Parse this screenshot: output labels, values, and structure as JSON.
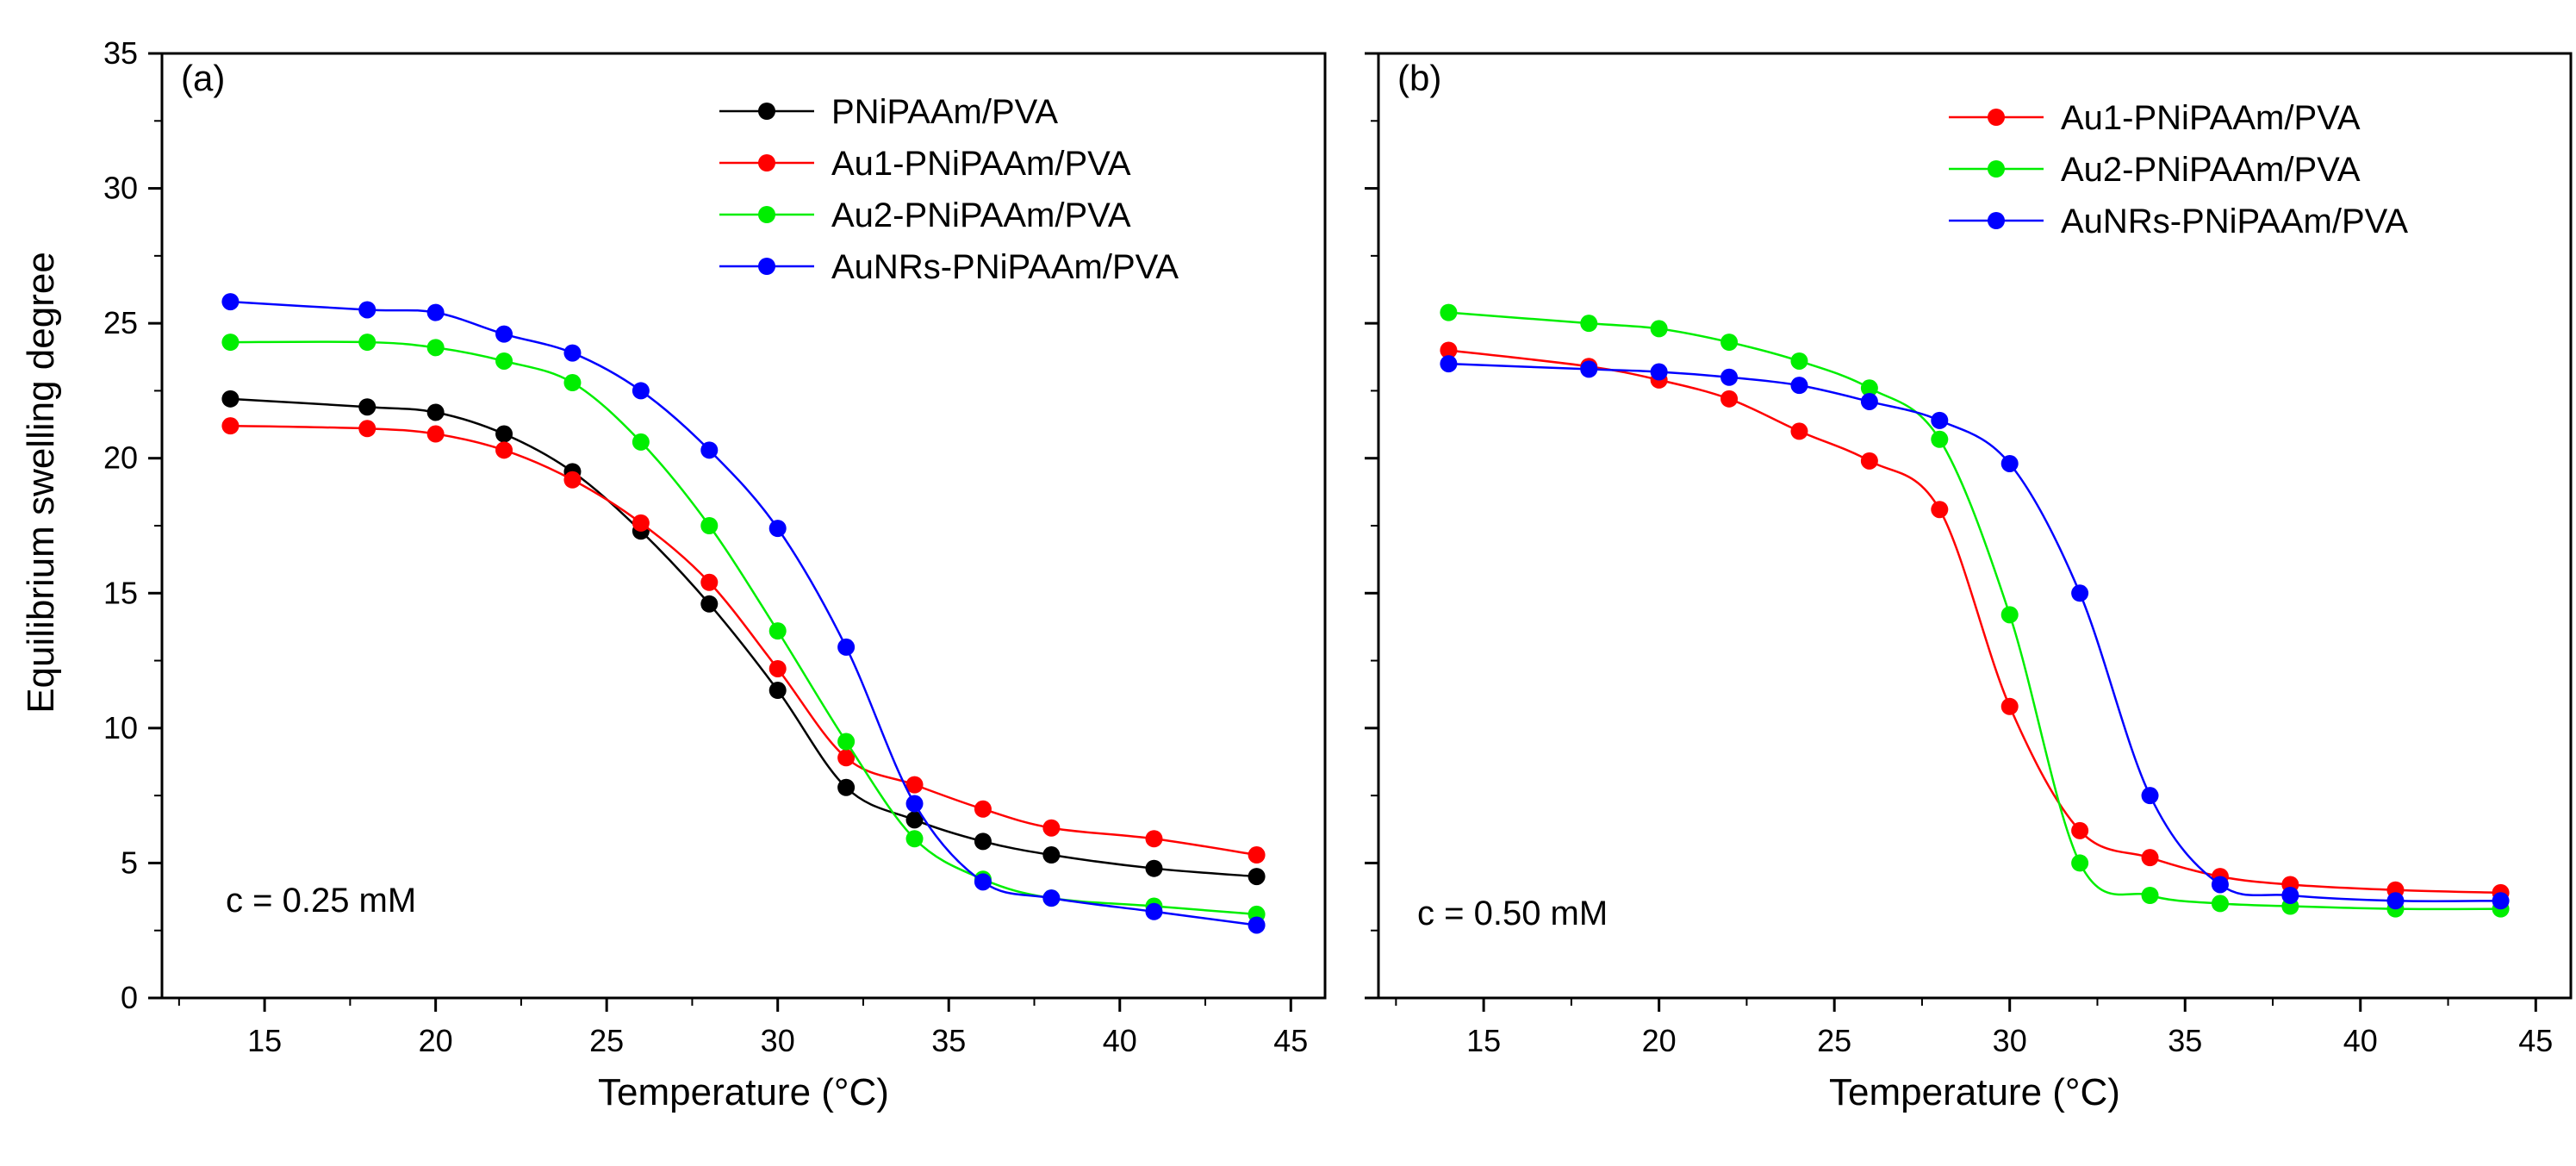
{
  "figure": {
    "ylabel": "Equilibrium swelling degree",
    "panel_a_conc": "c = 0.25 mM",
    "panel_b_conc": "c = 0.50 mM",
    "colors": {
      "PNiPAAm/PVA": "#000000",
      "Au1-PNiPAAm/PVA": "#ff0000",
      "Au2-PNiPAAm/PVA": "#00ee00",
      "AuNRs-PNiPAAm/PVA": "#0000ff"
    }
  },
  "chart_data": [
    {
      "type": "line",
      "panel": "(a)",
      "xlabel": "Temperature (°C)",
      "ylabel": "Equilibrium swelling degree",
      "xlim": [
        12,
        46
      ],
      "ylim": [
        0,
        35
      ],
      "xticks": [
        15,
        20,
        25,
        30,
        35,
        40,
        45
      ],
      "yticks": [
        0,
        5,
        10,
        15,
        20,
        25,
        30,
        35
      ],
      "legend_position": "top-right",
      "annotation": "c = 0.25 mM",
      "series": [
        {
          "name": "PNiPAAm/PVA",
          "color": "#000000",
          "x": [
            14,
            18,
            20,
            22,
            24,
            26,
            28,
            30,
            32,
            34,
            36,
            38,
            41,
            44
          ],
          "y": [
            22.2,
            21.9,
            21.7,
            20.9,
            19.5,
            17.3,
            14.6,
            11.4,
            7.8,
            6.6,
            5.8,
            5.3,
            4.8,
            4.5
          ]
        },
        {
          "name": "Au1-PNiPAAm/PVA",
          "color": "#ff0000",
          "x": [
            14,
            18,
            20,
            22,
            24,
            26,
            28,
            30,
            32,
            34,
            36,
            38,
            41,
            44
          ],
          "y": [
            21.2,
            21.1,
            20.9,
            20.3,
            19.2,
            17.6,
            15.4,
            12.2,
            8.9,
            7.9,
            7.0,
            6.3,
            5.9,
            5.3
          ]
        },
        {
          "name": "Au2-PNiPAAm/PVA",
          "color": "#00ee00",
          "x": [
            14,
            18,
            20,
            22,
            24,
            26,
            28,
            30,
            32,
            34,
            36,
            38,
            41,
            44
          ],
          "y": [
            24.3,
            24.3,
            24.1,
            23.6,
            22.8,
            20.6,
            17.5,
            13.6,
            9.5,
            5.9,
            4.4,
            3.7,
            3.4,
            3.1
          ]
        },
        {
          "name": "AuNRs-PNiPAAm/PVA",
          "color": "#0000ff",
          "x": [
            14,
            18,
            20,
            22,
            24,
            26,
            28,
            30,
            32,
            34,
            36,
            38,
            41,
            44
          ],
          "y": [
            25.8,
            25.5,
            25.4,
            24.6,
            23.9,
            22.5,
            20.3,
            17.4,
            13.0,
            7.2,
            4.3,
            3.7,
            3.2,
            2.7
          ]
        }
      ]
    },
    {
      "type": "line",
      "panel": "(b)",
      "xlabel": "Temperature (°C)",
      "ylabel": "",
      "xlim": [
        12,
        46
      ],
      "ylim": [
        0,
        35
      ],
      "xticks": [
        15,
        20,
        25,
        30,
        35,
        40,
        45
      ],
      "yticks": [
        0,
        5,
        10,
        15,
        20,
        25,
        30,
        35
      ],
      "legend_position": "top-right",
      "annotation": "c = 0.50 mM",
      "series": [
        {
          "name": "Au1-PNiPAAm/PVA",
          "color": "#ff0000",
          "x": [
            14,
            18,
            20,
            22,
            24,
            26,
            28,
            30,
            32,
            34,
            36,
            38,
            41,
            44
          ],
          "y": [
            24.0,
            23.4,
            22.9,
            22.2,
            21.0,
            19.9,
            18.1,
            10.8,
            6.2,
            5.2,
            4.5,
            4.2,
            4.0,
            3.9
          ]
        },
        {
          "name": "Au2-PNiPAAm/PVA",
          "color": "#00ee00",
          "x": [
            14,
            18,
            20,
            22,
            24,
            26,
            28,
            30,
            32,
            34,
            36,
            38,
            41,
            44
          ],
          "y": [
            25.4,
            25.0,
            24.8,
            24.3,
            23.6,
            22.6,
            20.7,
            14.2,
            5.0,
            3.8,
            3.5,
            3.4,
            3.3,
            3.3
          ]
        },
        {
          "name": "AuNRs-PNiPAAm/PVA",
          "color": "#0000ff",
          "x": [
            14,
            18,
            20,
            22,
            24,
            26,
            28,
            30,
            32,
            34,
            36,
            38,
            41,
            44
          ],
          "y": [
            23.5,
            23.3,
            23.2,
            23.0,
            22.7,
            22.1,
            21.4,
            19.8,
            15.0,
            7.5,
            4.2,
            3.8,
            3.6,
            3.6
          ]
        }
      ]
    }
  ]
}
